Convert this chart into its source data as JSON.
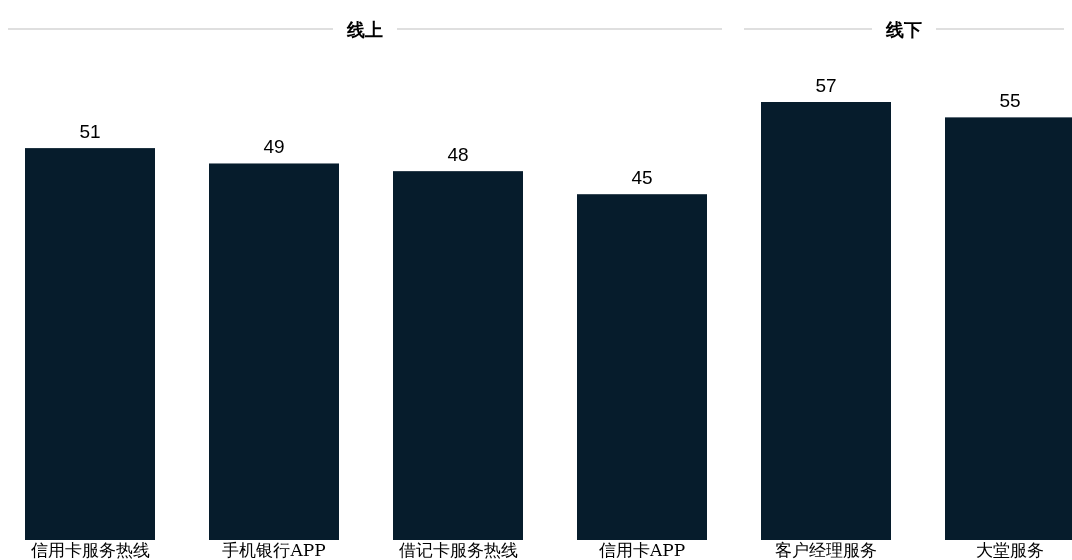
{
  "chart_data": [
    {
      "type": "bar",
      "title": "线上",
      "categories": [
        "信用卡服务热线",
        "手机银行APP",
        "借记卡服务热线",
        "信用卡APP"
      ],
      "values": [
        51,
        49,
        48,
        45
      ],
      "color": "#061c2c",
      "data_labels": true
    },
    {
      "type": "bar",
      "title": "线下",
      "categories": [
        "客户经理服务",
        "大堂服务"
      ],
      "values": [
        57,
        55
      ],
      "color": "#061c2c",
      "data_labels": true
    }
  ]
}
